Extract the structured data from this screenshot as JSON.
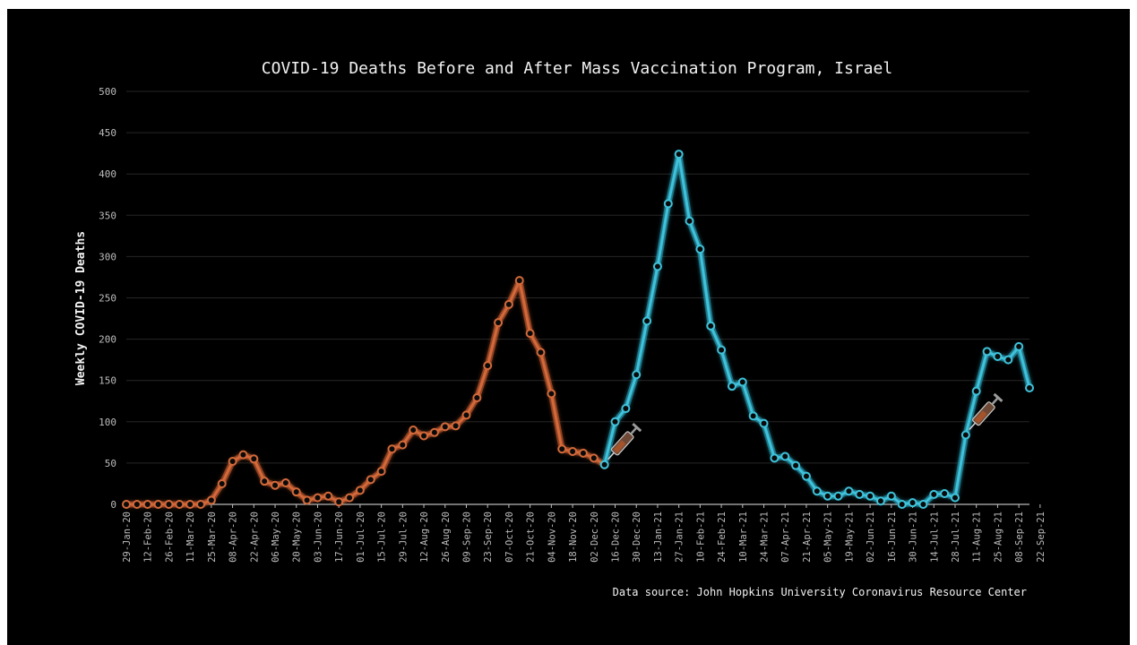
{
  "chart_data": {
    "type": "line",
    "title": "COVID-19 Deaths Before and After Mass Vaccination Program, Israel",
    "ylabel": "Weekly COVID-19 Deaths",
    "xlabel": "",
    "source_note": "Data source: John Hopkins University Coronavirus Resource Center",
    "ylim": [
      0,
      500
    ],
    "yticks": [
      0,
      50,
      100,
      150,
      200,
      250,
      300,
      350,
      400,
      450,
      500
    ],
    "grid": true,
    "x_tick_labels": [
      "29-Jan-20",
      "12-Feb-20",
      "26-Feb-20",
      "11-Mar-20",
      "25-Mar-20",
      "08-Apr-20",
      "22-Apr-20",
      "06-May-20",
      "20-May-20",
      "03-Jun-20",
      "17-Jun-20",
      "01-Jul-20",
      "15-Jul-20",
      "29-Jul-20",
      "12-Aug-20",
      "26-Aug-20",
      "09-Sep-20",
      "23-Sep-20",
      "07-Oct-20",
      "21-Oct-20",
      "04-Nov-20",
      "18-Nov-20",
      "02-Dec-20",
      "16-Dec-20",
      "30-Dec-20",
      "13-Jan-21",
      "27-Jan-21",
      "10-Feb-21",
      "24-Feb-21",
      "10-Mar-21",
      "24-Mar-21",
      "07-Apr-21",
      "21-Apr-21",
      "05-May-21",
      "19-May-21",
      "02-Jun-21",
      "16-Jun-21",
      "30-Jun-21",
      "14-Jul-21",
      "28-Jul-21",
      "11-Aug-21",
      "25-Aug-21",
      "08-Sep-21",
      "22-Sep-21"
    ],
    "series": [
      {
        "color": "#d2693a",
        "glow": "#8a3a1c",
        "values": [
          0,
          0,
          0,
          0,
          0,
          0,
          0,
          0,
          5,
          25,
          52,
          60,
          55,
          28,
          23,
          26,
          15,
          5,
          8,
          10,
          3,
          8,
          17,
          30,
          40,
          67,
          72,
          90,
          83,
          87,
          94,
          95,
          108,
          129,
          168,
          220,
          242,
          271,
          207,
          184,
          134,
          67,
          64,
          62,
          56,
          48
        ]
      },
      {
        "color": "#3fc2da",
        "glow": "#12677a",
        "values": [
          48,
          100,
          116,
          157,
          222,
          288,
          364,
          424,
          343,
          309,
          216,
          187,
          143,
          148,
          107,
          98,
          56,
          58,
          47,
          34,
          16,
          10,
          10,
          16,
          12,
          10,
          4,
          10,
          0,
          2,
          0,
          12,
          13,
          8,
          84,
          137,
          185,
          179,
          175,
          191,
          141
        ]
      }
    ],
    "annotations": [
      {
        "type": "syringe-icon",
        "at_index": 45
      },
      {
        "type": "syringe-icon",
        "at_index": 79
      }
    ]
  }
}
